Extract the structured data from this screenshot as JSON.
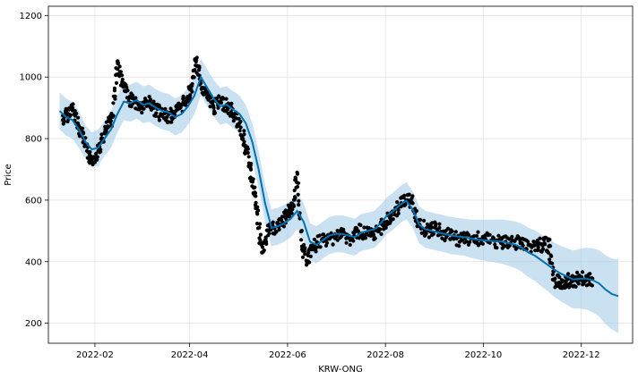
{
  "chart_data": {
    "type": "line",
    "xlabel": "KRW-ONG",
    "ylabel": "Price",
    "x_range": [
      "2022-01-03",
      "2023-01-02"
    ],
    "ylim": [
      135,
      1230
    ],
    "x_ticks": [
      "2022-02",
      "2022-04",
      "2022-06",
      "2022-08",
      "2022-10",
      "2022-12"
    ],
    "y_ticks": [
      200,
      400,
      600,
      800,
      1000,
      1200
    ],
    "grid": true,
    "colors": {
      "forecast": "#0072B2",
      "band": "#9ec9e6",
      "actual": "#000000"
    },
    "series": [
      {
        "kind": "observed",
        "x": [
          "2022-01-12",
          "2022-01-15",
          "2022-01-18",
          "2022-01-21",
          "2022-01-24",
          "2022-01-27",
          "2022-01-30",
          "2022-02-03",
          "2022-02-06",
          "2022-02-09",
          "2022-02-12",
          "2022-02-15",
          "2022-02-18",
          "2022-02-22",
          "2022-02-26",
          "2022-03-02",
          "2022-03-06",
          "2022-03-10",
          "2022-03-14",
          "2022-03-18",
          "2022-03-22",
          "2022-03-26",
          "2022-03-30",
          "2022-04-02",
          "2022-04-05",
          "2022-04-08",
          "2022-04-12",
          "2022-04-16",
          "2022-04-20",
          "2022-04-24",
          "2022-04-28",
          "2022-05-02",
          "2022-05-05",
          "2022-05-08",
          "2022-05-11",
          "2022-05-13",
          "2022-05-16",
          "2022-05-20",
          "2022-05-24",
          "2022-05-28",
          "2022-06-01",
          "2022-06-04",
          "2022-06-07",
          "2022-06-10",
          "2022-06-13",
          "2022-06-16",
          "2022-06-20",
          "2022-06-25",
          "2022-06-30",
          "2022-07-05",
          "2022-07-10",
          "2022-07-15",
          "2022-07-20",
          "2022-07-25",
          "2022-07-30",
          "2022-08-04",
          "2022-08-09",
          "2022-08-14",
          "2022-08-18",
          "2022-08-22",
          "2022-08-27",
          "2022-09-01",
          "2022-09-06",
          "2022-09-12",
          "2022-09-18",
          "2022-09-24",
          "2022-09-30",
          "2022-10-06",
          "2022-10-12",
          "2022-10-18",
          "2022-10-24",
          "2022-10-30",
          "2022-11-04",
          "2022-11-08",
          "2022-11-11",
          "2022-11-14",
          "2022-11-18",
          "2022-11-22",
          "2022-11-26",
          "2022-11-30",
          "2022-12-04",
          "2022-12-08"
        ],
        "y": [
          860,
          880,
          900,
          850,
          820,
          760,
          730,
          760,
          800,
          840,
          870,
          1050,
          980,
          930,
          920,
          900,
          920,
          900,
          880,
          870,
          880,
          900,
          930,
          960,
          1050,
          980,
          940,
          900,
          920,
          910,
          880,
          850,
          790,
          720,
          640,
          560,
          430,
          500,
          510,
          520,
          560,
          570,
          690,
          450,
          400,
          440,
          460,
          470,
          480,
          490,
          470,
          500,
          490,
          480,
          520,
          540,
          580,
          600,
          590,
          520,
          500,
          510,
          490,
          480,
          470,
          480,
          470,
          470,
          460,
          460,
          460,
          455,
          450,
          460,
          450,
          340,
          330,
          340,
          340,
          345,
          345,
          345
        ]
      },
      {
        "kind": "forecast",
        "x": [
          "2022-01-10",
          "2022-01-14",
          "2022-01-18",
          "2022-01-22",
          "2022-01-26",
          "2022-01-30",
          "2022-02-03",
          "2022-02-07",
          "2022-02-11",
          "2022-02-15",
          "2022-02-19",
          "2022-02-23",
          "2022-02-27",
          "2022-03-03",
          "2022-03-07",
          "2022-03-11",
          "2022-03-15",
          "2022-03-19",
          "2022-03-23",
          "2022-03-27",
          "2022-03-31",
          "2022-04-04",
          "2022-04-08",
          "2022-04-12",
          "2022-04-16",
          "2022-04-20",
          "2022-04-24",
          "2022-04-28",
          "2022-05-02",
          "2022-05-06",
          "2022-05-10",
          "2022-05-14",
          "2022-05-18",
          "2022-05-22",
          "2022-05-26",
          "2022-05-30",
          "2022-06-03",
          "2022-06-07",
          "2022-06-11",
          "2022-06-15",
          "2022-06-19",
          "2022-06-23",
          "2022-06-27",
          "2022-07-01",
          "2022-07-05",
          "2022-07-09",
          "2022-07-13",
          "2022-07-17",
          "2022-07-21",
          "2022-07-25",
          "2022-07-29",
          "2022-08-02",
          "2022-08-06",
          "2022-08-10",
          "2022-08-14",
          "2022-08-18",
          "2022-08-22",
          "2022-08-26",
          "2022-08-30",
          "2022-09-03",
          "2022-09-07",
          "2022-09-11",
          "2022-09-15",
          "2022-09-19",
          "2022-09-23",
          "2022-09-27",
          "2022-10-01",
          "2022-10-05",
          "2022-10-09",
          "2022-10-13",
          "2022-10-17",
          "2022-10-21",
          "2022-10-25",
          "2022-10-29",
          "2022-11-02",
          "2022-11-06",
          "2022-11-10",
          "2022-11-14",
          "2022-11-18",
          "2022-11-22",
          "2022-11-26",
          "2022-11-30",
          "2022-12-04",
          "2022-12-08",
          "2022-12-12",
          "2022-12-16",
          "2022-12-20",
          "2022-12-24"
        ],
        "y": [
          890,
          870,
          860,
          830,
          790,
          765,
          770,
          800,
          830,
          880,
          920,
          915,
          925,
          910,
          915,
          900,
          890,
          885,
          870,
          880,
          905,
          940,
          1000,
          965,
          930,
          905,
          910,
          895,
          880,
          850,
          790,
          700,
          590,
          510,
          515,
          525,
          540,
          565,
          530,
          465,
          455,
          470,
          485,
          490,
          490,
          485,
          480,
          495,
          500,
          505,
          525,
          550,
          565,
          585,
          598,
          570,
          520,
          505,
          500,
          495,
          490,
          485,
          482,
          480,
          475,
          472,
          470,
          468,
          467,
          465,
          460,
          455,
          445,
          430,
          420,
          405,
          390,
          375,
          362,
          352,
          342,
          345,
          345,
          340,
          330,
          310,
          295,
          288
        ],
        "lower": [
          830,
          810,
          800,
          770,
          735,
          710,
          710,
          745,
          770,
          820,
          860,
          855,
          865,
          850,
          855,
          840,
          830,
          825,
          810,
          820,
          845,
          880,
          940,
          905,
          870,
          845,
          850,
          835,
          820,
          790,
          730,
          640,
          530,
          450,
          455,
          465,
          480,
          505,
          470,
          405,
          395,
          410,
          425,
          430,
          430,
          425,
          420,
          435,
          440,
          445,
          465,
          490,
          505,
          525,
          538,
          510,
          460,
          445,
          440,
          435,
          430,
          425,
          422,
          420,
          413,
          408,
          404,
          400,
          397,
          393,
          386,
          379,
          367,
          350,
          338,
          321,
          304,
          287,
          272,
          260,
          248,
          248,
          245,
          236,
          222,
          198,
          180,
          168
        ],
        "upper": [
          950,
          930,
          920,
          890,
          845,
          820,
          830,
          855,
          890,
          940,
          980,
          975,
          985,
          970,
          975,
          960,
          950,
          945,
          930,
          940,
          965,
          1000,
          1060,
          1025,
          990,
          965,
          970,
          955,
          940,
          910,
          850,
          760,
          650,
          570,
          575,
          585,
          600,
          625,
          590,
          525,
          515,
          530,
          545,
          550,
          550,
          545,
          540,
          555,
          560,
          565,
          585,
          610,
          625,
          645,
          658,
          630,
          580,
          565,
          560,
          555,
          550,
          545,
          542,
          540,
          537,
          536,
          536,
          536,
          537,
          537,
          534,
          531,
          523,
          510,
          502,
          489,
          476,
          463,
          452,
          444,
          436,
          442,
          445,
          444,
          438,
          422,
          410,
          408
        ]
      }
    ]
  }
}
